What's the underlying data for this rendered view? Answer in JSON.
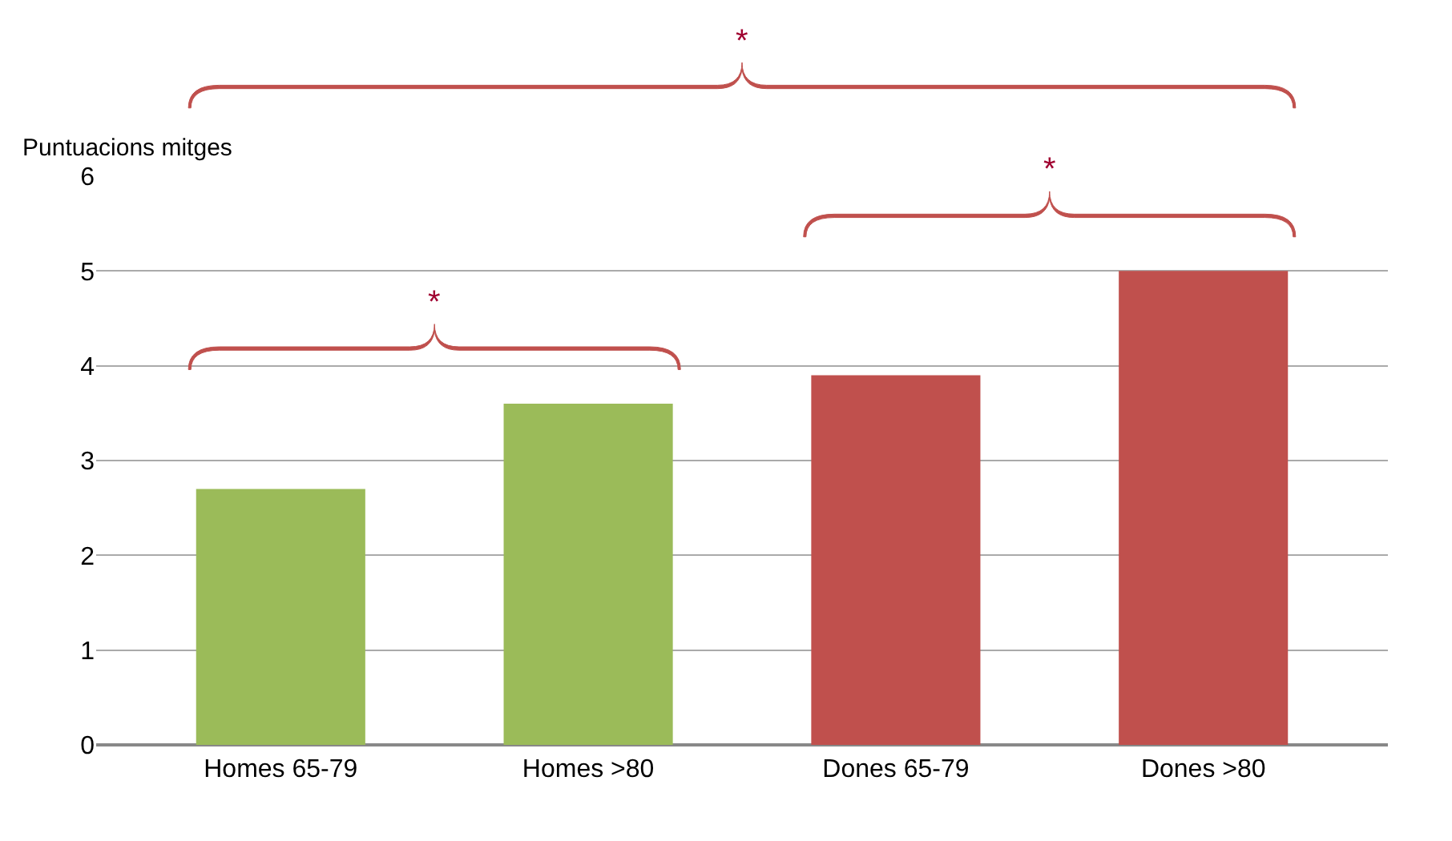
{
  "chart_data": {
    "type": "bar",
    "ylabel": "Puntuacions mitges",
    "categories": [
      "Homes 65-79",
      "Homes >80",
      "Dones 65-79",
      "Dones >80"
    ],
    "values": [
      2.7,
      3.6,
      3.9,
      5.0
    ],
    "colors": [
      "#9bbb59",
      "#9bbb59",
      "#c0504d",
      "#c0504d"
    ],
    "ylim": [
      0,
      6
    ],
    "yticks": [
      0,
      1,
      2,
      3,
      4,
      5,
      6
    ],
    "grid": "y",
    "annotations": [
      "*",
      "*",
      "*"
    ]
  }
}
